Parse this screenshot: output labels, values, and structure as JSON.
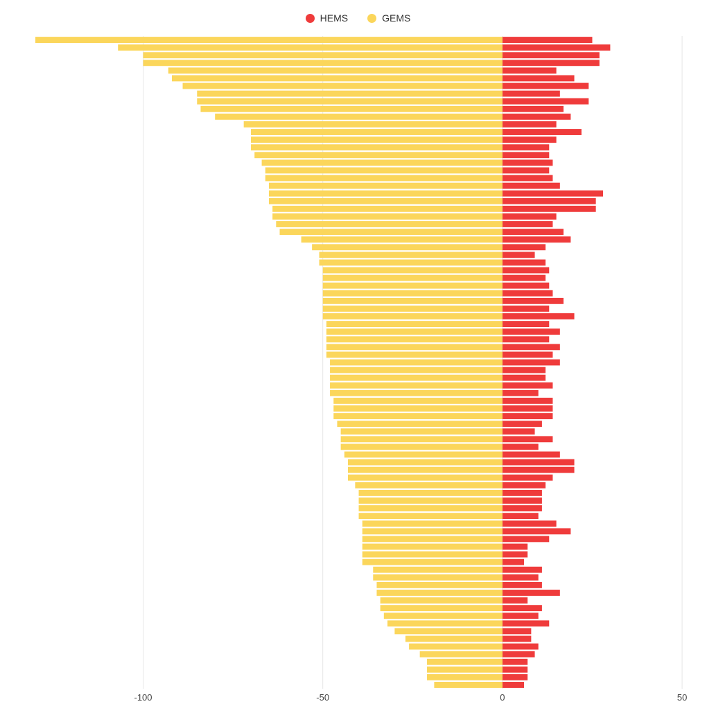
{
  "chart_data": {
    "type": "bar",
    "orientation": "horizontal",
    "stacked": "diverging",
    "title": "",
    "xlabel": "",
    "ylabel": "",
    "xlim": [
      -130,
      55
    ],
    "xticks": [
      -100,
      -50,
      0,
      50
    ],
    "xtick_labels": [
      "-100",
      "-50",
      "0",
      "50"
    ],
    "grid": "vertical",
    "legend_position": "top-center",
    "series": [
      {
        "name": "HEMS",
        "color": "#ef3b3b",
        "values": [
          25,
          30,
          27,
          27,
          15,
          20,
          24,
          16,
          24,
          17,
          19,
          15,
          22,
          15,
          13,
          13,
          14,
          13,
          14,
          16,
          28,
          26,
          26,
          15,
          14,
          17,
          19,
          12,
          9,
          12,
          13,
          12,
          13,
          14,
          17,
          13,
          20,
          13,
          16,
          13,
          16,
          14,
          16,
          12,
          12,
          14,
          10,
          14,
          14,
          14,
          11,
          9,
          14,
          10,
          16,
          20,
          20,
          14,
          12,
          11,
          11,
          11,
          10,
          15,
          19,
          13,
          7,
          7,
          6,
          11,
          10,
          11,
          16,
          7,
          11,
          10,
          13,
          8,
          8,
          10,
          9,
          7,
          7,
          7,
          6
        ]
      },
      {
        "name": "GEMS",
        "color": "#fbd65b",
        "values": [
          -130,
          -107,
          -100,
          -100,
          -93,
          -92,
          -89,
          -85,
          -85,
          -84,
          -80,
          -72,
          -70,
          -70,
          -70,
          -69,
          -67,
          -66,
          -66,
          -65,
          -65,
          -65,
          -64,
          -64,
          -63,
          -62,
          -56,
          -53,
          -51,
          -51,
          -50,
          -50,
          -50,
          -50,
          -50,
          -50,
          -50,
          -49,
          -49,
          -49,
          -49,
          -49,
          -48,
          -48,
          -48,
          -48,
          -48,
          -47,
          -47,
          -47,
          -46,
          -45,
          -45,
          -45,
          -44,
          -43,
          -43,
          -43,
          -41,
          -40,
          -40,
          -40,
          -40,
          -39,
          -39,
          -39,
          -39,
          -39,
          -39,
          -36,
          -36,
          -35,
          -35,
          -34,
          -34,
          -33,
          -32,
          -30,
          -27,
          -26,
          -23,
          -21,
          -21,
          -21,
          -19
        ]
      }
    ]
  }
}
